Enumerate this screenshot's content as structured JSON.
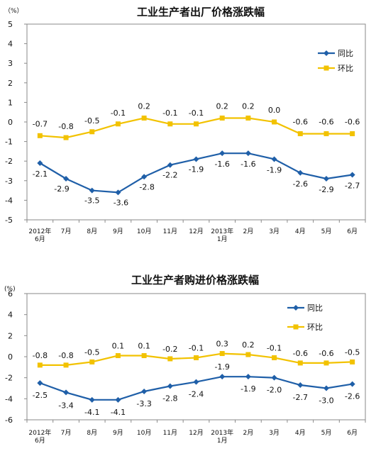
{
  "chart_data": [
    {
      "type": "line",
      "title": "工业生产者出厂价格涨跌幅",
      "unit_label": "（%）",
      "ylim": [
        -5,
        5
      ],
      "yticks": [
        5,
        4,
        3,
        2,
        1,
        0,
        -1,
        -2,
        -3,
        -4,
        -5
      ],
      "categories": [
        [
          "2012年",
          "6月"
        ],
        [
          "7月"
        ],
        [
          "8月"
        ],
        [
          "9月"
        ],
        [
          "10月"
        ],
        [
          "11月"
        ],
        [
          "12月"
        ],
        [
          "2013年",
          "1月"
        ],
        [
          "2月"
        ],
        [
          "3月"
        ],
        [
          "4月"
        ],
        [
          "5月"
        ],
        [
          "6月"
        ]
      ],
      "series": [
        {
          "name": "同比",
          "color": "#1f5fa8",
          "marker": "diamond",
          "values": [
            -2.1,
            -2.9,
            -3.5,
            -3.6,
            -2.8,
            -2.2,
            -1.9,
            -1.6,
            -1.6,
            -1.9,
            -2.6,
            -2.9,
            -2.7
          ]
        },
        {
          "name": "环比",
          "color": "#f2c200",
          "marker": "square",
          "values": [
            -0.7,
            -0.8,
            -0.5,
            -0.1,
            0.2,
            -0.1,
            -0.1,
            0.2,
            0.2,
            0.0,
            -0.6,
            -0.6,
            -0.6
          ]
        }
      ],
      "data_labels": [
        [
          "-2.1",
          "-2.9",
          "-3.5",
          "-3.6",
          "-2.8",
          "-2.2",
          "-1.9",
          "-1.6",
          "-1.6",
          "-1.9",
          "-2.6",
          "-2.9",
          "-2.7"
        ],
        [
          "-0.7",
          "-0.8",
          "-0.5",
          "-0.1",
          "0.2",
          "-0.1",
          "-0.1",
          "0.2",
          "0.2",
          "0.0",
          "-0.6",
          "-0.6",
          "-0.6"
        ]
      ],
      "grid": false,
      "legend_position": "right"
    },
    {
      "type": "line",
      "title": "工业生产者购进价格涨跌幅",
      "unit_label": "(%)",
      "ylim": [
        -6,
        6
      ],
      "yticks": [
        6,
        4,
        2,
        0,
        -2,
        -4,
        -6
      ],
      "categories": [
        [
          "2012年",
          "6月"
        ],
        [
          "7月"
        ],
        [
          "8月"
        ],
        [
          "9月"
        ],
        [
          "10月"
        ],
        [
          "11月"
        ],
        [
          "12月"
        ],
        [
          "2013年",
          "1月"
        ],
        [
          "2月"
        ],
        [
          "3月"
        ],
        [
          "4月"
        ],
        [
          "5月"
        ],
        [
          "6月"
        ]
      ],
      "series": [
        {
          "name": "同比",
          "color": "#1f5fa8",
          "marker": "diamond",
          "values": [
            -2.5,
            -3.4,
            -4.1,
            -4.1,
            -3.3,
            -2.8,
            -2.4,
            -1.9,
            -1.9,
            -2.0,
            -2.7,
            -3.0,
            -2.6
          ]
        },
        {
          "name": "环比",
          "color": "#f2c200",
          "marker": "square",
          "values": [
            -0.8,
            -0.8,
            -0.5,
            0.1,
            0.1,
            -0.2,
            -0.1,
            0.3,
            0.2,
            -0.1,
            -0.6,
            -0.6,
            -0.5
          ]
        }
      ],
      "data_labels": [
        [
          "-2.5",
          "-3.4",
          "-4.1",
          "-4.1",
          "-3.3",
          "-2.8",
          "-2.4",
          "-1.9",
          "-1.9",
          "-2.0",
          "-2.7",
          "-3.0",
          "-2.6"
        ],
        [
          "-0.8",
          "-0.8",
          "-0.5",
          "0.1",
          "0.1",
          "-0.2",
          "-0.1",
          "0.3",
          "0.2",
          "-0.1",
          "-0.6",
          "-0.6",
          "-0.5"
        ]
      ],
      "grid": false,
      "legend_position": "right"
    }
  ]
}
